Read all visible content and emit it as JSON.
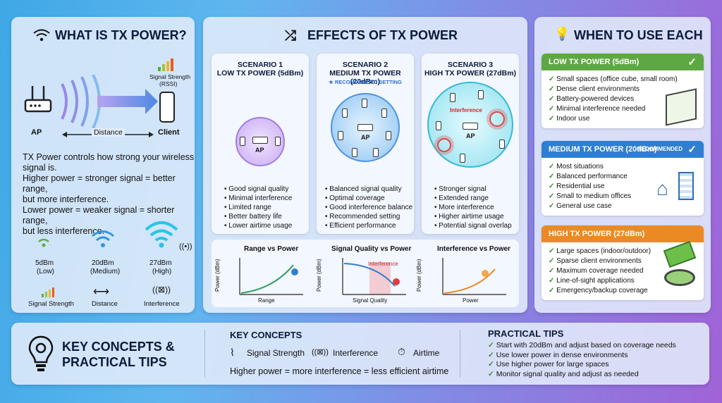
{
  "left": {
    "title": "WHAT IS TX POWER?",
    "signal_strength_label": "Signal Strength",
    "rssi_label": "(RSSI)",
    "ap_label": "AP",
    "distance_label": "Distance",
    "client_label": "Client",
    "description": [
      "TX Power controls how strong your wireless",
      "signal is.",
      "Higher power = stronger signal = better range,",
      "but more interference.",
      "Lower power = weaker signal = shorter range,",
      "but less interference."
    ],
    "levels": [
      {
        "value": "5dBm",
        "name": "(Low)"
      },
      {
        "value": "20dBm",
        "name": "(Medium)"
      },
      {
        "value": "27dBm",
        "name": "(High)"
      }
    ],
    "legend": [
      "Signal Strength",
      "Distance",
      "Interference"
    ]
  },
  "middle": {
    "title": "EFFECTS OF TX POWER",
    "scenarios": [
      {
        "num": "SCENARIO 1",
        "name": "LOW TX POWER (5dBm)",
        "note": "",
        "ap": "AP",
        "items": [
          "Good signal quality",
          "Minimal interference",
          "Limited range",
          "Better battery life",
          "Lower airtime usage"
        ]
      },
      {
        "num": "SCENARIO 2",
        "name": "MEDIUM TX POWER (20dBm)",
        "note": "RECOMMENDED SETTING",
        "ap": "AP",
        "items": [
          "Balanced signal quality",
          "Optimal coverage",
          "Good interference balance",
          "Recommended setting",
          "Efficient performance"
        ]
      },
      {
        "num": "SCENARIO 3",
        "name": "HIGH TX POWER (27dBm)",
        "note": "Interference",
        "ap": "AP",
        "items": [
          "Stronger signal",
          "Extended range",
          "More interference",
          "Higher airtime usage",
          "Potential signal overlap"
        ]
      }
    ],
    "graphs": [
      {
        "title": "Range vs Power",
        "ylabel": "Power (dBm)",
        "xlabel": "Range"
      },
      {
        "title": "Signal Quality vs Power",
        "ylabel": "Power (dBm)",
        "xlabel": "Signal Quality",
        "annotation": "Interference"
      },
      {
        "title": "Interference vs Power",
        "ylabel": "Power (dBm)",
        "xlabel": "Power"
      }
    ]
  },
  "right": {
    "title": "WHEN TO USE EACH",
    "cards": [
      {
        "title": "LOW TX POWER (5dBm)",
        "badge": "",
        "color": "#5ea844",
        "items": [
          "Small spaces (office cube, small room)",
          "Dense client environments",
          "Battery-powered devices",
          "Minimal interference needed",
          "Indoor use"
        ]
      },
      {
        "title": "MEDIUM TX POWER (20dBm)",
        "badge": "RECOMMENDED",
        "color": "#2f7fd0",
        "items": [
          "Most situations",
          "Balanced performance",
          "Residential use",
          "Small to medium offices",
          "General use case"
        ]
      },
      {
        "title": "HIGH TX POWER (27dBm)",
        "badge": "",
        "color": "#ea8a24",
        "items": [
          "Large spaces (indoor/outdoor)",
          "Sparse client environments",
          "Maximum coverage needed",
          "Line-of-sight applications",
          "Emergency/backup coverage"
        ]
      }
    ]
  },
  "bottom": {
    "title_line1": "KEY CONCEPTS &",
    "title_line2": "PRACTICAL TIPS",
    "concepts_title": "KEY CONCEPTS",
    "concepts": [
      "Signal Strength",
      "Interference",
      "Airtime"
    ],
    "concept_summary": "Higher power = more interference = less efficient airtime",
    "tips_title": "PRACTICAL TIPS",
    "tips": [
      "Start with 20dBm and adjust based on coverage needs",
      "Use lower power in dense environments",
      "Use higher power for large spaces",
      "Monitor signal quality and adjust as needed"
    ]
  },
  "colors": {
    "low": "#5ea844",
    "medium": "#2f7fd0",
    "high": "#ea8a24"
  }
}
